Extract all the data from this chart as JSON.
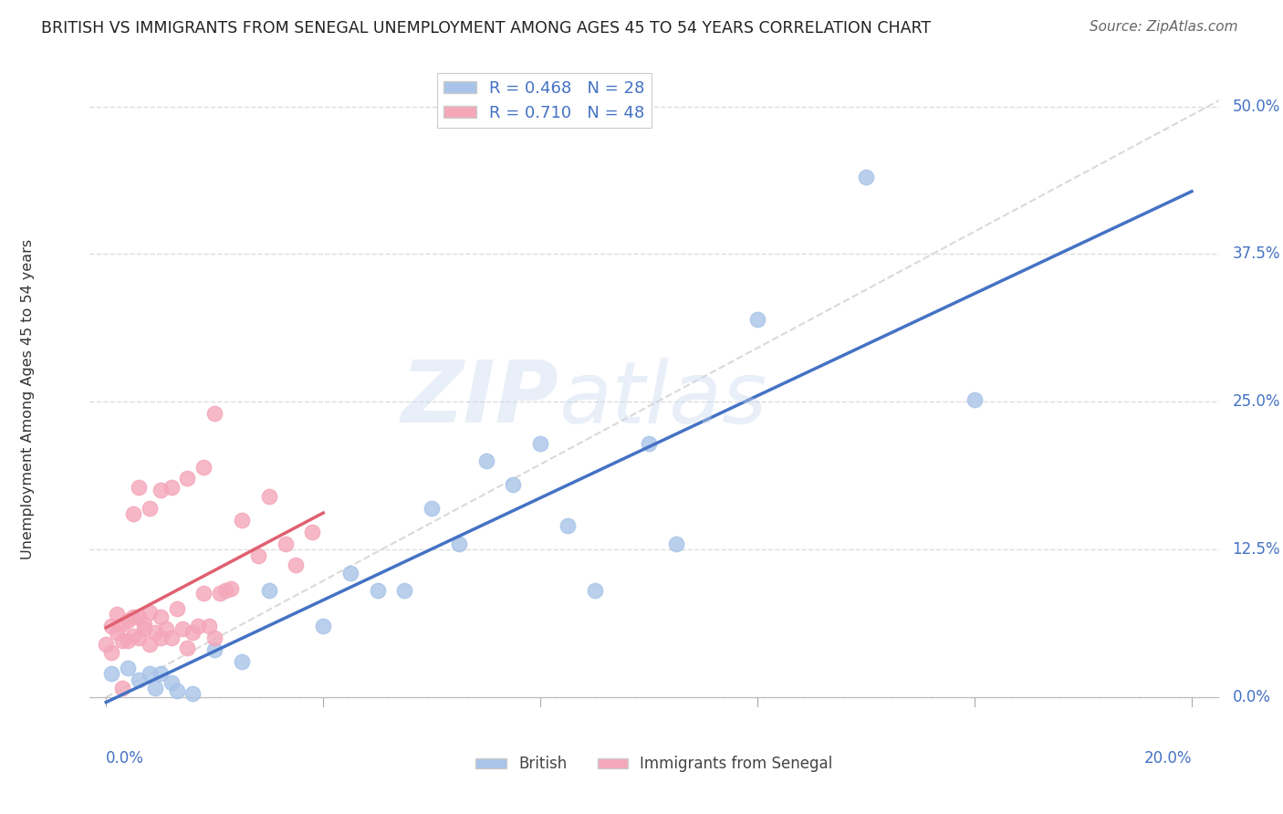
{
  "title": "BRITISH VS IMMIGRANTS FROM SENEGAL UNEMPLOYMENT AMONG AGES 45 TO 54 YEARS CORRELATION CHART",
  "source": "Source: ZipAtlas.com",
  "ylabel": "Unemployment Among Ages 45 to 54 years",
  "ytick_vals": [
    0.0,
    0.125,
    0.25,
    0.375,
    0.5
  ],
  "ytick_labels": [
    "0.0%",
    "12.5%",
    "25.0%",
    "37.5%",
    "50.0%"
  ],
  "xtick_vals": [
    0.0,
    0.04,
    0.08,
    0.12,
    0.16,
    0.2
  ],
  "xlim": [
    -0.003,
    0.205
  ],
  "ylim": [
    -0.03,
    0.535
  ],
  "watermark_zip": "ZIP",
  "watermark_atlas": "atlas",
  "legend_british_R": "R = 0.468",
  "legend_british_N": "N = 28",
  "legend_senegal_R": "R = 0.710",
  "legend_senegal_N": "N = 48",
  "british_color": "#a8c4e8",
  "senegal_color": "#f4a7b9",
  "british_line_color": "#4472c4",
  "senegal_line_color": "#e06070",
  "diag_color": "#d0d0d0",
  "title_color": "#222222",
  "axis_label_color": "#4472c4",
  "british_x": [
    0.001,
    0.004,
    0.006,
    0.008,
    0.01,
    0.012,
    0.013,
    0.02,
    0.025,
    0.03,
    0.04,
    0.045,
    0.055,
    0.06,
    0.065,
    0.07,
    0.075,
    0.08,
    0.085,
    0.09,
    0.1,
    0.105,
    0.12,
    0.14,
    0.16,
    0.009,
    0.016,
    0.05
  ],
  "british_y": [
    0.02,
    0.025,
    0.015,
    0.02,
    0.02,
    0.012,
    0.005,
    0.04,
    0.03,
    0.09,
    0.06,
    0.105,
    0.09,
    0.16,
    0.13,
    0.2,
    0.18,
    0.215,
    0.145,
    0.09,
    0.215,
    0.13,
    0.32,
    0.44,
    0.252,
    0.008,
    0.003,
    0.09
  ],
  "senegal_x": [
    0.0,
    0.001,
    0.001,
    0.002,
    0.002,
    0.003,
    0.003,
    0.004,
    0.004,
    0.005,
    0.005,
    0.006,
    0.006,
    0.007,
    0.007,
    0.008,
    0.008,
    0.009,
    0.01,
    0.01,
    0.011,
    0.012,
    0.013,
    0.014,
    0.015,
    0.016,
    0.017,
    0.018,
    0.019,
    0.02,
    0.021,
    0.022,
    0.023,
    0.025,
    0.028,
    0.03,
    0.033,
    0.035,
    0.038,
    0.005,
    0.008,
    0.01,
    0.015,
    0.02,
    0.003,
    0.006,
    0.012,
    0.018
  ],
  "senegal_y": [
    0.045,
    0.038,
    0.06,
    0.055,
    0.07,
    0.048,
    0.062,
    0.048,
    0.065,
    0.052,
    0.068,
    0.05,
    0.068,
    0.058,
    0.062,
    0.045,
    0.072,
    0.055,
    0.05,
    0.068,
    0.058,
    0.05,
    0.075,
    0.058,
    0.042,
    0.055,
    0.06,
    0.088,
    0.06,
    0.05,
    0.088,
    0.09,
    0.092,
    0.15,
    0.12,
    0.17,
    0.13,
    0.112,
    0.14,
    0.155,
    0.16,
    0.175,
    0.185,
    0.24,
    0.008,
    0.178,
    0.178,
    0.195
  ]
}
